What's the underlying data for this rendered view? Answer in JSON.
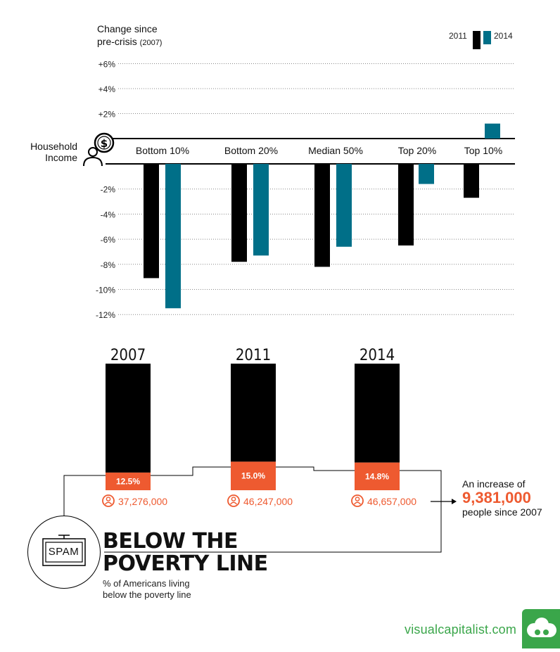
{
  "chart_data": [
    {
      "type": "bar",
      "title_line1": "Change since",
      "title_line2": "pre-crisis",
      "title_year": "(2007)",
      "row_label_line1": "Household",
      "row_label_line2": "Income",
      "categories": [
        "Bottom 10%",
        "Bottom 20%",
        "Median 50%",
        "Top 20%",
        "Top 10%"
      ],
      "series": [
        {
          "name": "2011",
          "color": "#000000",
          "values": [
            -9.1,
            -7.8,
            -8.2,
            -6.5,
            -2.7
          ]
        },
        {
          "name": "2014",
          "color": "#006f88",
          "values": [
            -11.5,
            -7.3,
            -6.6,
            -1.6,
            1.2
          ]
        }
      ],
      "y_ticks": [
        "+6%",
        "+4%",
        "+2%",
        "-2%",
        "-4%",
        "-6%",
        "-8%",
        "-10%",
        "-12%"
      ],
      "y_tick_values": [
        6,
        4,
        2,
        -2,
        -4,
        -6,
        -8,
        -10,
        -12
      ],
      "ylim": [
        -12,
        6
      ],
      "grid": true,
      "legend_position": "top-right"
    },
    {
      "type": "bar",
      "categories": [
        "2007",
        "2011",
        "2014"
      ],
      "values": [
        12.5,
        15.0,
        14.8
      ],
      "value_labels": [
        "12.5%",
        "15.0%",
        "14.8%"
      ],
      "people": [
        "37,276,000",
        "46,247,000",
        "46,657,000"
      ],
      "colors": {
        "bar": "#000000",
        "value_box": "#ee5a30",
        "people_text": "#ee5a30"
      }
    }
  ],
  "poverty": {
    "icon_label": "SPAM",
    "title_line1": "BELOW THE",
    "title_line2": "POVERTY LINE",
    "subtitle_line1": "% of Americans living",
    "subtitle_line2": "below the poverty line",
    "increase_intro": "An increase of",
    "increase_value": "9,381,000",
    "increase_outro": "people since 2007"
  },
  "footer": {
    "brand": "visualcapitalist.com",
    "brand_color": "#3aa64a"
  }
}
